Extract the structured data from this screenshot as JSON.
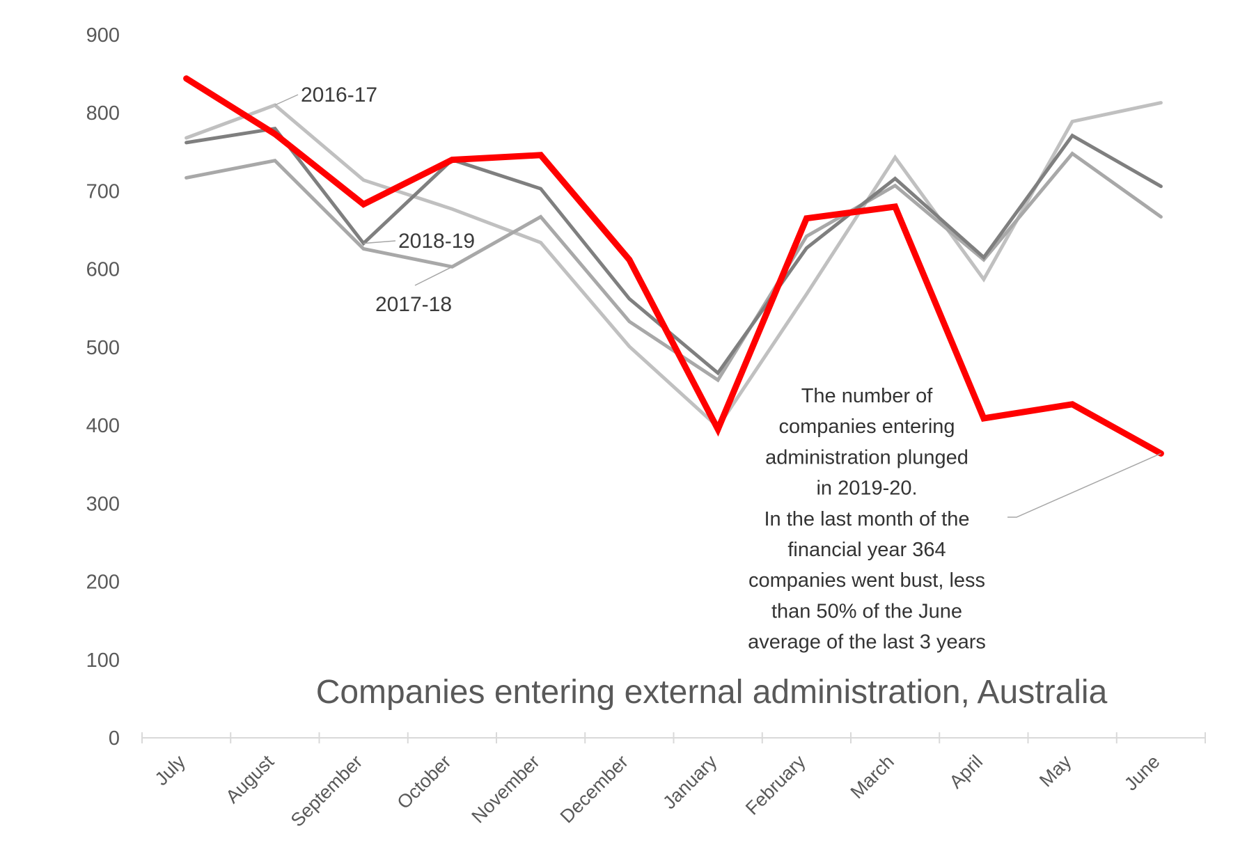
{
  "chart_data": {
    "type": "line",
    "title": "Companies entering external administration, Australia",
    "xlabel": "",
    "ylabel": "",
    "ylim": [
      0,
      900
    ],
    "yticks": [
      0,
      100,
      200,
      300,
      400,
      500,
      600,
      700,
      800,
      900
    ],
    "grid": false,
    "categories": [
      "July",
      "August",
      "September",
      "October",
      "November",
      "December",
      "January",
      "February",
      "March",
      "April",
      "May",
      "June"
    ],
    "series": [
      {
        "name": "2016-17",
        "color": "#c0c0c0",
        "labeled": true,
        "values": [
          768,
          810,
          714,
          677,
          634,
          501,
          398,
          568,
          743,
          587,
          789,
          813
        ]
      },
      {
        "name": "2017-18",
        "color": "#a8a8a8",
        "labeled": true,
        "values": [
          717,
          739,
          626,
          603,
          667,
          533,
          458,
          642,
          707,
          612,
          748,
          667
        ]
      },
      {
        "name": "2018-19",
        "color": "#7f7f7f",
        "labeled": true,
        "values": [
          762,
          780,
          633,
          740,
          703,
          562,
          467,
          627,
          716,
          615,
          771,
          706
        ]
      },
      {
        "name": "2019-20",
        "color": "#ff0000",
        "labeled": false,
        "values": [
          844,
          773,
          683,
          740,
          746,
          612,
          395,
          665,
          680,
          409,
          427,
          364
        ]
      }
    ],
    "annotation": {
      "lines": [
        "The number of",
        "companies entering",
        "administration plunged",
        "in 2019-20.",
        "In the last month of the",
        "financial year 364",
        "companies went bust, less",
        "than 50% of the June",
        "average of the last 3 years"
      ],
      "target_series": "2019-20",
      "target_category": "June"
    }
  }
}
